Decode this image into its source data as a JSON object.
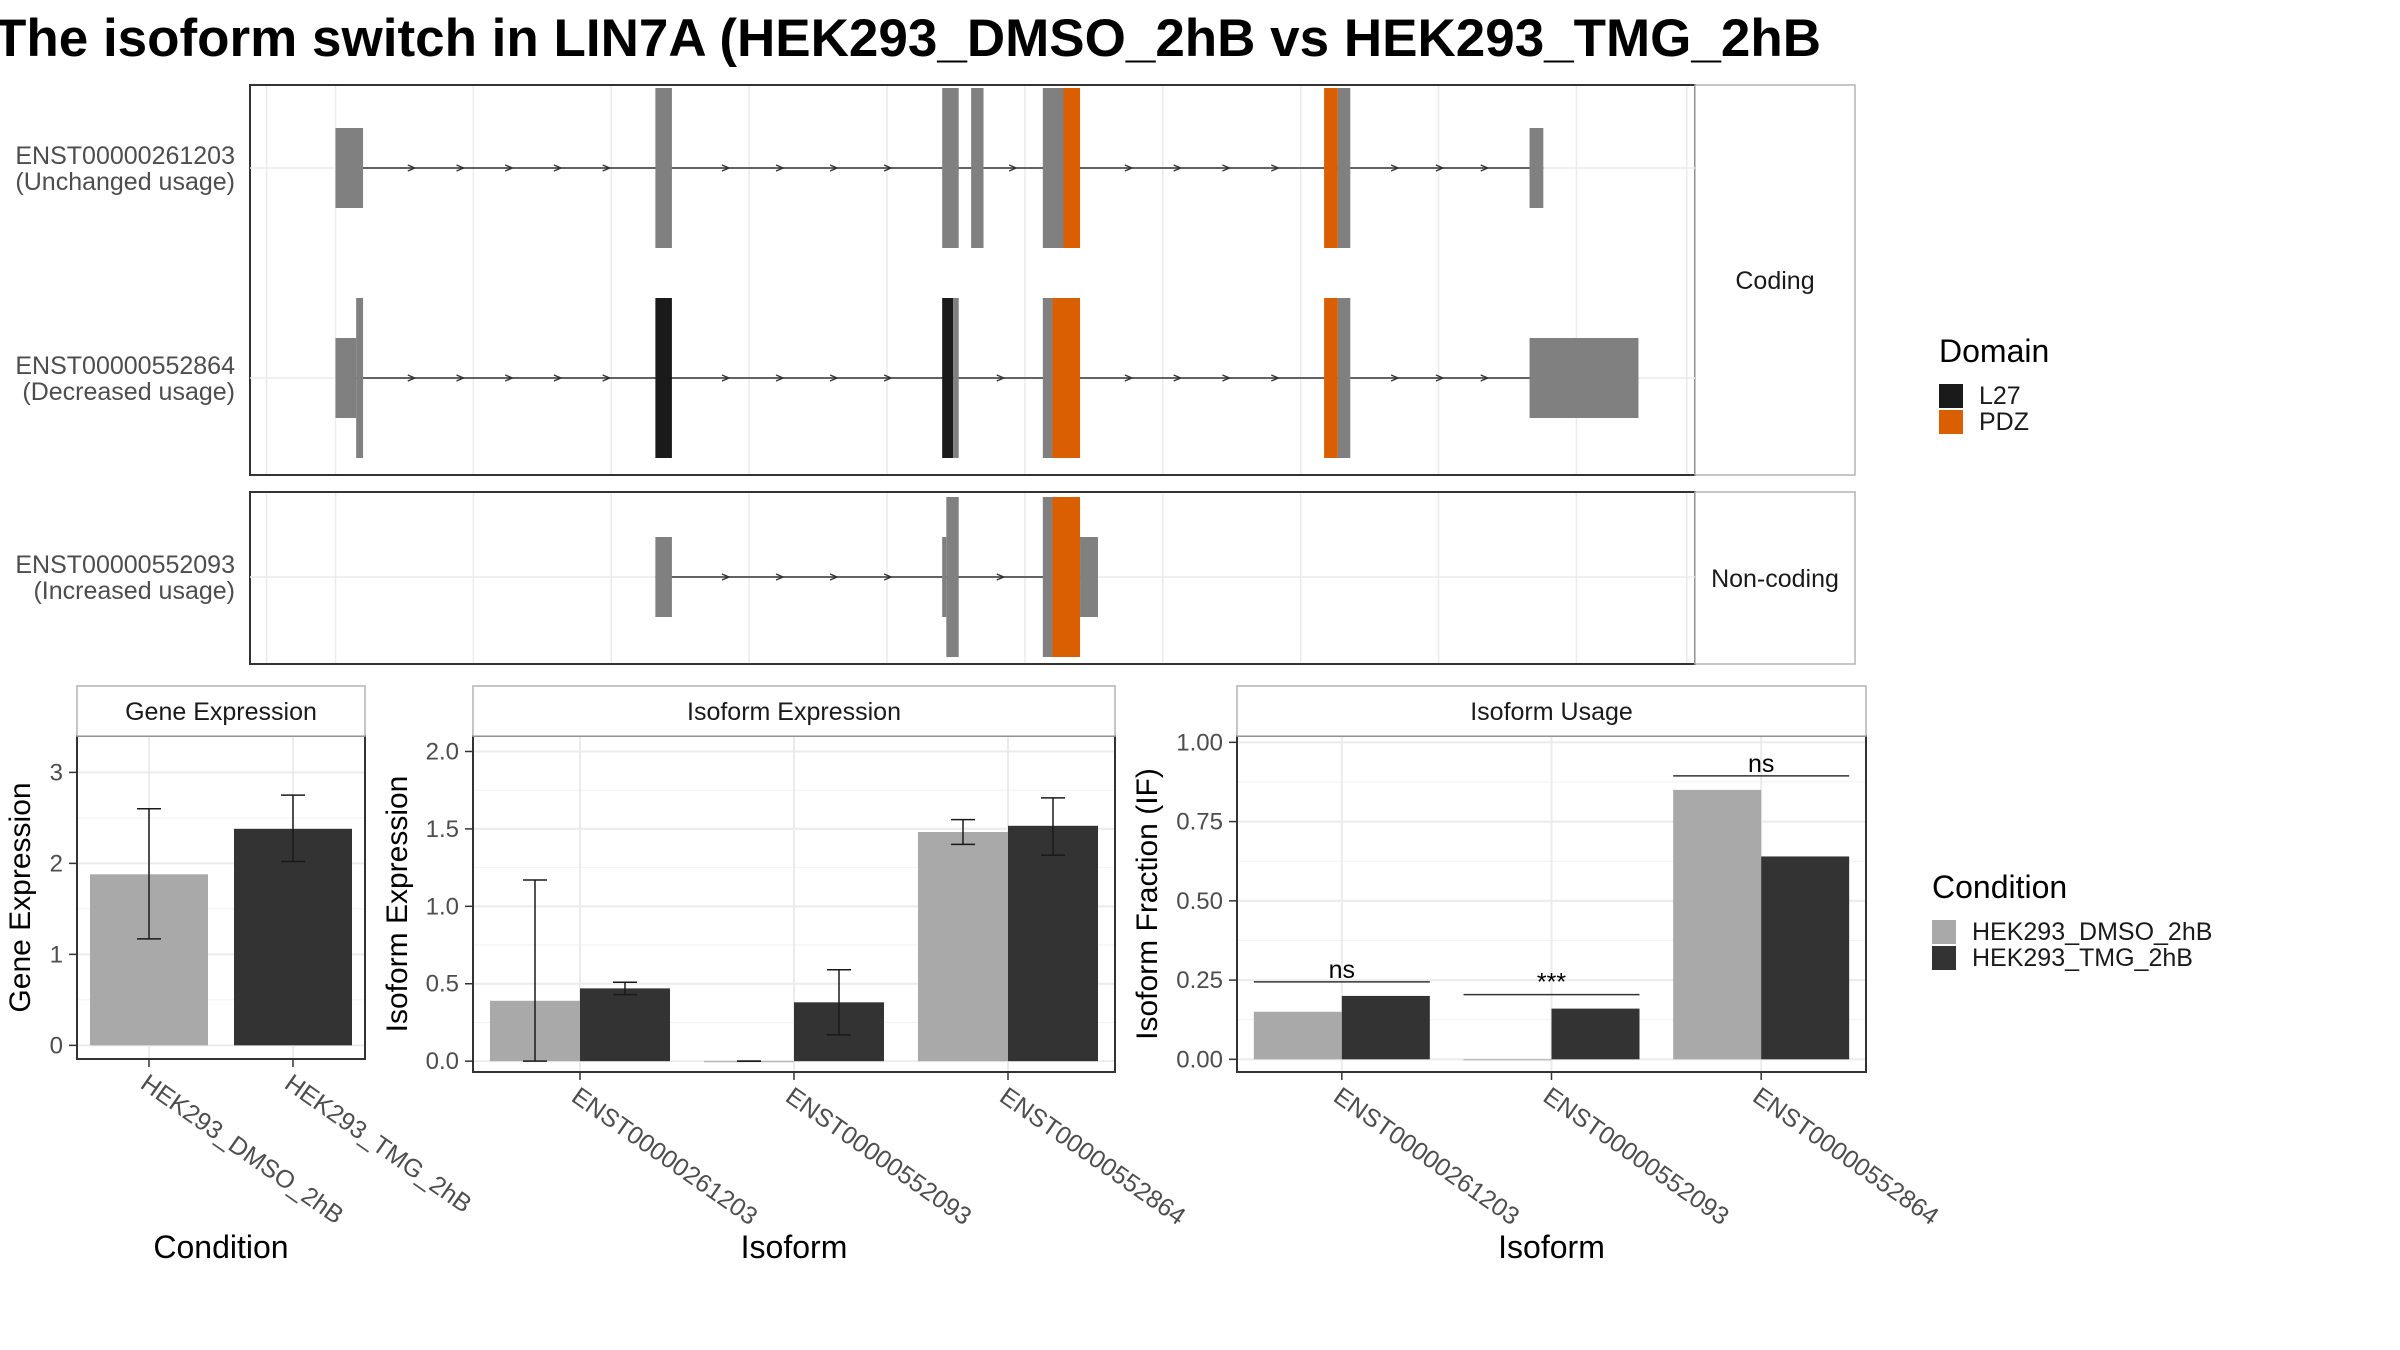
{
  "title": "The isoform switch in LIN7A (HEK293_DMSO_2hB vs HEK293_TMG_2hB",
  "colors": {
    "exon": "#808080",
    "l27": "#1a1a1a",
    "pdz": "#d95f02",
    "dmso": "#a9a9a9",
    "tmg": "#333333",
    "grid": "#ebebeb",
    "panel_border": "#333333",
    "strip_border": "#b3b3b3"
  },
  "structure": {
    "facets": [
      "Coding",
      "Non-coding"
    ],
    "transcripts": [
      {
        "id": "ENST00000261203",
        "usage": "(Unchanged usage)",
        "facet": "Coding",
        "exons": [
          {
            "start": 0.0,
            "end": 0.2,
            "type": "utr"
          },
          {
            "start": 2.32,
            "end": 2.44,
            "type": "cds"
          },
          {
            "start": 4.4,
            "end": 4.52,
            "type": "cds"
          },
          {
            "start": 4.61,
            "end": 4.7,
            "type": "cds"
          },
          {
            "start": 5.13,
            "end": 5.28,
            "type": "cds"
          },
          {
            "start": 5.28,
            "end": 5.4,
            "type": "cds",
            "domain": "PDZ"
          },
          {
            "start": 7.17,
            "end": 7.27,
            "type": "cds",
            "domain": "PDZ"
          },
          {
            "start": 7.27,
            "end": 7.36,
            "type": "cds"
          },
          {
            "start": 8.66,
            "end": 8.76,
            "type": "utr"
          }
        ]
      },
      {
        "id": "ENST00000552864",
        "usage": "(Decreased usage)",
        "facet": "Coding",
        "exons": [
          {
            "start": 0.0,
            "end": 0.15,
            "type": "utr"
          },
          {
            "start": 0.15,
            "end": 0.2,
            "type": "cds"
          },
          {
            "start": 2.32,
            "end": 2.44,
            "type": "cds",
            "domain": "L27"
          },
          {
            "start": 4.4,
            "end": 4.48,
            "type": "cds",
            "domain": "L27"
          },
          {
            "start": 4.48,
            "end": 4.52,
            "type": "cds"
          },
          {
            "start": 5.13,
            "end": 5.2,
            "type": "cds"
          },
          {
            "start": 5.2,
            "end": 5.4,
            "type": "cds",
            "domain": "PDZ"
          },
          {
            "start": 7.17,
            "end": 7.27,
            "type": "cds",
            "domain": "PDZ"
          },
          {
            "start": 7.27,
            "end": 7.36,
            "type": "cds"
          },
          {
            "start": 8.66,
            "end": 9.45,
            "type": "utr"
          }
        ]
      },
      {
        "id": "ENST00000552093",
        "usage": "(Increased usage)",
        "facet": "Non-coding",
        "exons": [
          {
            "start": 2.32,
            "end": 2.44,
            "type": "utr"
          },
          {
            "start": 4.4,
            "end": 4.43,
            "type": "utr"
          },
          {
            "start": 4.43,
            "end": 4.52,
            "type": "cds"
          },
          {
            "start": 5.13,
            "end": 5.2,
            "type": "cds"
          },
          {
            "start": 5.2,
            "end": 5.4,
            "type": "cds",
            "domain": "PDZ"
          },
          {
            "start": 5.4,
            "end": 5.53,
            "type": "utr"
          }
        ]
      }
    ],
    "legend": {
      "title": "Domain",
      "items": [
        {
          "label": "L27",
          "color": "#1a1a1a"
        },
        {
          "label": "PDZ",
          "color": "#d95f02"
        }
      ]
    }
  },
  "chart_data": [
    {
      "type": "bar",
      "title": "Gene Expression",
      "xlabel": "Condition",
      "ylabel": "Gene Expression",
      "ylim": [
        -0.15,
        3.4
      ],
      "yticks": [
        0,
        1,
        2,
        3
      ],
      "categories": [
        "HEK293_DMSO_2hB",
        "HEK293_TMG_2hB"
      ],
      "values": [
        1.88,
        2.38
      ],
      "errors": [
        [
          1.17,
          2.6
        ],
        [
          2.02,
          2.75
        ]
      ],
      "colors": [
        "#a9a9a9",
        "#333333"
      ]
    },
    {
      "type": "bar",
      "title": "Isoform Expression",
      "xlabel": "Isoform",
      "ylabel": "Isoform Expression",
      "ylim": [
        -0.07,
        2.1
      ],
      "yticks": [
        0.0,
        0.5,
        1.0,
        1.5,
        2.0
      ],
      "categories": [
        "ENST00000261203",
        "ENST00000552093",
        "ENST00000552864"
      ],
      "series": [
        {
          "name": "HEK293_DMSO_2hB",
          "values": [
            0.39,
            0.0,
            1.48
          ],
          "errors": [
            [
              0.0,
              1.17
            ],
            [
              0.0,
              0.0
            ],
            [
              1.4,
              1.56
            ]
          ]
        },
        {
          "name": "HEK293_TMG_2hB",
          "values": [
            0.47,
            0.38,
            1.52
          ],
          "errors": [
            [
              0.43,
              0.51
            ],
            [
              0.17,
              0.59
            ],
            [
              1.33,
              1.7
            ]
          ]
        }
      ]
    },
    {
      "type": "bar",
      "title": "Isoform Usage",
      "xlabel": "Isoform",
      "ylabel": "Isoform Fraction (IF)",
      "ylim": [
        -0.04,
        1.02
      ],
      "yticks": [
        0.0,
        0.25,
        0.5,
        0.75,
        1.0
      ],
      "ytick_labels": [
        "0.00",
        "0.25",
        "0.50",
        "0.75",
        "1.00"
      ],
      "categories": [
        "ENST00000261203",
        "ENST00000552093",
        "ENST00000552864"
      ],
      "series": [
        {
          "name": "HEK293_DMSO_2hB",
          "values": [
            0.15,
            0.0,
            0.85
          ]
        },
        {
          "name": "HEK293_TMG_2hB",
          "values": [
            0.2,
            0.16,
            0.64
          ]
        }
      ],
      "annotations": [
        "ns",
        "***",
        "ns"
      ]
    }
  ],
  "condition_legend": {
    "title": "Condition",
    "items": [
      {
        "label": "HEK293_DMSO_2hB",
        "color": "#a9a9a9"
      },
      {
        "label": "HEK293_TMG_2hB",
        "color": "#333333"
      }
    ]
  }
}
